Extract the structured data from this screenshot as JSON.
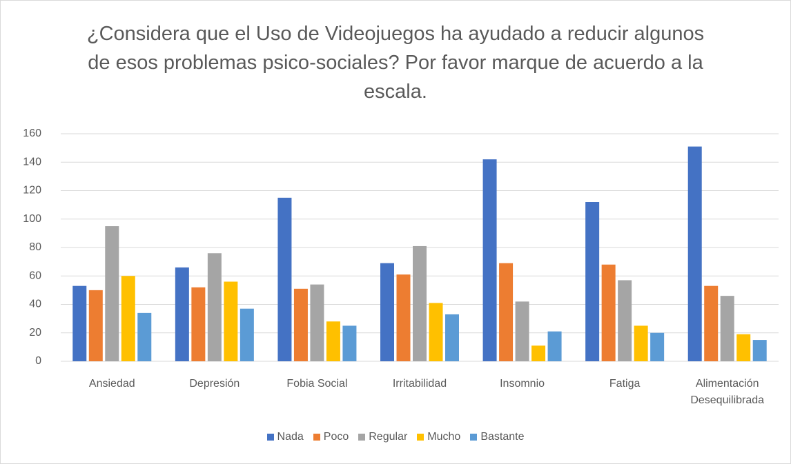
{
  "chart_data": {
    "type": "bar",
    "title": "¿Considera que el Uso de Videojuegos ha ayudado a reducir algunos de esos problemas psico-sociales? Por favor marque de acuerdo a la escala.",
    "categories": [
      "Ansiedad",
      "Depresión",
      "Fobia Social",
      "Irritabilidad",
      "Insomnio",
      "Fatiga",
      "Alimentación Desequilibrada"
    ],
    "series": [
      {
        "name": "Nada",
        "color": "#4472c4",
        "values": [
          53,
          66,
          115,
          69,
          142,
          112,
          151
        ]
      },
      {
        "name": "Poco",
        "color": "#ed7d31",
        "values": [
          50,
          52,
          51,
          61,
          69,
          68,
          53
        ]
      },
      {
        "name": "Regular",
        "color": "#a5a5a5",
        "values": [
          95,
          76,
          54,
          81,
          42,
          57,
          46
        ]
      },
      {
        "name": "Mucho",
        "color": "#ffc000",
        "values": [
          60,
          56,
          28,
          41,
          11,
          25,
          19
        ]
      },
      {
        "name": "Bastante",
        "color": "#5b9bd5",
        "values": [
          34,
          37,
          25,
          33,
          21,
          20,
          15
        ]
      }
    ],
    "ylim": [
      0,
      160
    ],
    "yticks": [
      0,
      20,
      40,
      60,
      80,
      100,
      120,
      140,
      160
    ],
    "grid": true,
    "legend": "bottom"
  }
}
